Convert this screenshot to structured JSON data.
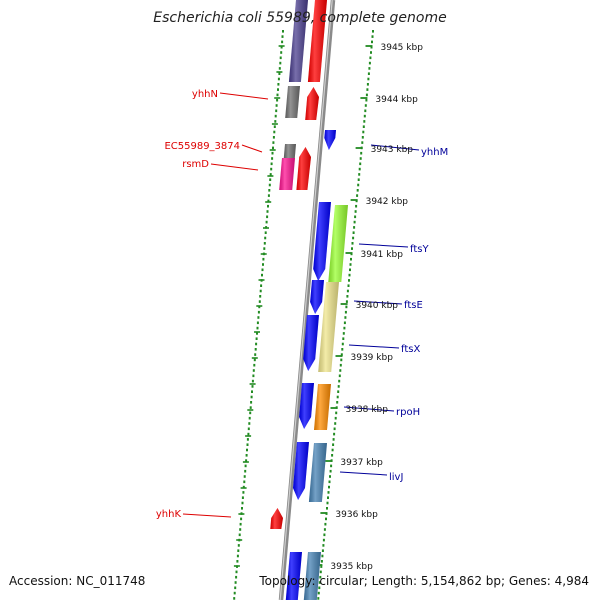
{
  "title": "Escherichia coli 55989, complete genome",
  "footer": {
    "accession": "Accession: NC_011748",
    "topology": "Topology: circular; Length: 5,154,862 bp; Genes: 4,984"
  },
  "colors": {
    "label_red": "#dd0000",
    "label_blue": "#000099",
    "backbone": "#8a8a8a",
    "ruler_green": "#228b22"
  },
  "kbp_labels": [
    "3945 kbp",
    "3944 kbp",
    "3943 kbp",
    "3942 kbp",
    "3941 kbp",
    "3940 kbp",
    "3939 kbp",
    "3938 kbp",
    "3937 kbp",
    "3936 kbp",
    "3935 kbp"
  ],
  "genes": [
    {
      "name": "yhhN",
      "color": "#dd0000"
    },
    {
      "name": "EC55989_3874",
      "color": "#dd0000"
    },
    {
      "name": "rsmD",
      "color": "#dd0000"
    },
    {
      "name": "yhhK",
      "color": "#dd0000"
    },
    {
      "name": "yhhM",
      "color": "#000099"
    },
    {
      "name": "ftsY",
      "color": "#000099"
    },
    {
      "name": "ftsE",
      "color": "#000099"
    },
    {
      "name": "ftsX",
      "color": "#000099"
    },
    {
      "name": "rpoH",
      "color": "#000099"
    },
    {
      "name": "livJ",
      "color": "#000099"
    }
  ]
}
